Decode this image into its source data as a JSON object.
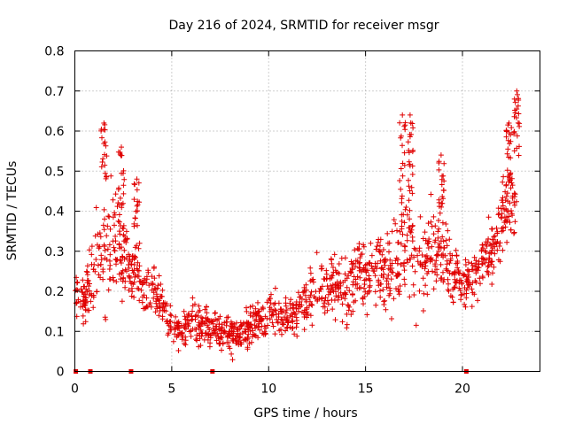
{
  "chart_data": {
    "type": "scatter",
    "title": "Day 216 of 2024, SRMTID for receiver msgr",
    "xlabel": "GPS time / hours",
    "ylabel": "SRMTID / TECUs",
    "xlim": [
      0,
      24
    ],
    "ylim": [
      0,
      0.8
    ],
    "xticks": [
      "0",
      "5",
      "10",
      "15",
      "20"
    ],
    "yticks": [
      "0",
      "0.1",
      "0.2",
      "0.3",
      "0.4",
      "0.5",
      "0.6",
      "0.7",
      "0.8"
    ],
    "grid": true,
    "marker": "plus",
    "series_color": "#e00000",
    "profile": {
      "x": [
        0.0,
        0.5,
        1.0,
        1.5,
        2.0,
        2.5,
        3.0,
        3.5,
        4.0,
        4.5,
        5.0,
        5.5,
        6.0,
        6.5,
        7.0,
        7.5,
        8.0,
        8.5,
        9.0,
        9.5,
        10.0,
        10.5,
        11.0,
        11.5,
        12.0,
        12.5,
        13.0,
        13.5,
        14.0,
        14.5,
        15.0,
        15.5,
        16.0,
        16.5,
        17.0,
        17.5,
        18.0,
        18.5,
        19.0,
        19.5,
        20.0,
        20.5,
        21.0,
        21.5,
        22.0,
        22.5,
        22.8
      ],
      "center": [
        0.19,
        0.17,
        0.26,
        0.3,
        0.33,
        0.3,
        0.24,
        0.22,
        0.2,
        0.17,
        0.11,
        0.1,
        0.12,
        0.12,
        0.11,
        0.1,
        0.09,
        0.1,
        0.11,
        0.13,
        0.15,
        0.14,
        0.13,
        0.15,
        0.18,
        0.2,
        0.21,
        0.23,
        0.2,
        0.25,
        0.23,
        0.26,
        0.24,
        0.28,
        0.3,
        0.31,
        0.28,
        0.29,
        0.31,
        0.24,
        0.22,
        0.24,
        0.26,
        0.3,
        0.37,
        0.45,
        0.48
      ],
      "spread": [
        0.05,
        0.04,
        0.11,
        0.14,
        0.11,
        0.08,
        0.06,
        0.05,
        0.05,
        0.05,
        0.04,
        0.04,
        0.05,
        0.05,
        0.05,
        0.04,
        0.04,
        0.04,
        0.05,
        0.05,
        0.05,
        0.04,
        0.04,
        0.05,
        0.06,
        0.06,
        0.06,
        0.07,
        0.07,
        0.08,
        0.07,
        0.07,
        0.08,
        0.1,
        0.13,
        0.13,
        0.09,
        0.09,
        0.09,
        0.06,
        0.05,
        0.06,
        0.06,
        0.07,
        0.09,
        0.1,
        0.1
      ],
      "point_count": 1400
    },
    "spikes": [
      {
        "x": 1.5,
        "y_max": 0.62
      },
      {
        "x": 2.4,
        "y_max": 0.56
      },
      {
        "x": 3.2,
        "y_max": 0.48
      },
      {
        "x": 16.9,
        "y_max": 0.64
      },
      {
        "x": 17.3,
        "y_max": 0.64
      },
      {
        "x": 18.9,
        "y_max": 0.54
      },
      {
        "x": 22.4,
        "y_max": 0.62
      },
      {
        "x": 22.8,
        "y_max": 0.7
      }
    ],
    "zero_markers_x": [
      0.05,
      0.8,
      2.9,
      7.1,
      20.2
    ]
  }
}
